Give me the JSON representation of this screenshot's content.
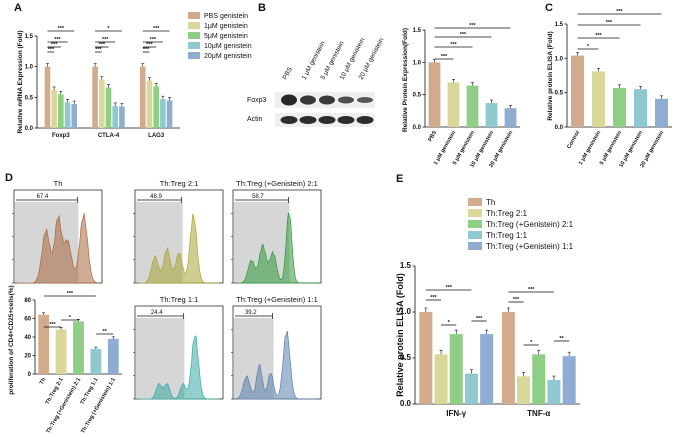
{
  "panel_letters": {
    "a": "A",
    "b": "B",
    "c": "C",
    "d": "D",
    "e": "E"
  },
  "colors": {
    "pbs": "#d2aa8c",
    "g1": "#d9d79a",
    "g5": "#8fcf85",
    "g10": "#8fc8cf",
    "g20": "#8facd3",
    "th": "#d2aa8c",
    "treg21": "#d9d79a",
    "gen21": "#8fcf85",
    "treg11": "#8fc8cf",
    "gen11": "#8facd3",
    "hist_brown": "#a9683f",
    "hist_olive": "#a7a637",
    "hist_green": "#2f9a3c",
    "hist_teal": "#3aa9a4",
    "hist_blue": "#5a80ad",
    "gate": "#d6d6d6"
  },
  "blot": {
    "labels": [
      "Foxp3",
      "Actin"
    ],
    "lanes": [
      "PBS",
      "1 μM genistein",
      "5 μM genistein",
      "10 μM genistein",
      "20 μM genistein"
    ]
  },
  "histograms": {
    "th": {
      "title": "Th",
      "gate": "67.4"
    },
    "treg21": {
      "title": "Th:Treg  2:1",
      "gate": "48.9"
    },
    "gen21": {
      "title": "Th:Treg (+Genistein)  2:1",
      "gate": "58.7"
    },
    "treg11": {
      "title": "Th:Treg  1:1",
      "gate": "24.4"
    },
    "gen11": {
      "title": "Th:Treg (+Genistein) 1:1",
      "gate": "39.2"
    }
  },
  "chart_data": [
    {
      "id": "A",
      "type": "bar",
      "ylabel": "Relative mRNA Expression (Fold)",
      "ylim": [
        0,
        1.5
      ],
      "yticks": [
        0.0,
        0.5,
        1.0,
        1.5
      ],
      "categories": [
        "Foxp3",
        "CTLA-4",
        "LAG3"
      ],
      "series": [
        {
          "name": "PBS genistein",
          "values": [
            1.0,
            1.0,
            1.0
          ]
        },
        {
          "name": "1μM genistein",
          "values": [
            0.62,
            0.79,
            0.77
          ]
        },
        {
          "name": "5μM genistein",
          "values": [
            0.55,
            0.66,
            0.68
          ]
        },
        {
          "name": "10μM genistein",
          "values": [
            0.42,
            0.36,
            0.47
          ]
        },
        {
          "name": "20μM  genistein",
          "values": [
            0.39,
            0.35,
            0.45
          ]
        }
      ],
      "significance": [
        "***",
        "***",
        "***",
        "***",
        "***",
        "***",
        "***",
        "***",
        "***",
        "*",
        "***",
        "***",
        "***",
        "***",
        "***"
      ],
      "legend": "right"
    },
    {
      "id": "B",
      "type": "bar",
      "ylabel": "Relative Protein Expression(Fold)",
      "ylim": [
        0,
        1.5
      ],
      "yticks": [
        0.0,
        0.5,
        1.0,
        1.5
      ],
      "categories": [
        "PBS",
        "1 μM genistein",
        "5 μM genistein",
        "10 μM genistein",
        "20 μM genistein"
      ],
      "values": [
        1.0,
        0.69,
        0.64,
        0.37,
        0.29
      ],
      "significance": [
        "***",
        "***",
        "***",
        "***"
      ]
    },
    {
      "id": "C",
      "type": "bar",
      "ylabel": "Relative protein ELISA (Fold)",
      "ylim": [
        0,
        1.5
      ],
      "yticks": [
        0.0,
        0.5,
        1.0,
        1.5
      ],
      "categories": [
        "Control",
        "1 μM genistein",
        "5 μM genistein",
        "10 μM genistein",
        "20 μM genistein"
      ],
      "values": [
        1.04,
        0.81,
        0.57,
        0.55,
        0.41
      ],
      "significance": [
        "*",
        "***",
        "***",
        "***"
      ]
    },
    {
      "id": "D",
      "type": "bar",
      "ylabel": "proliferation of CD4+CD25+cells(%)",
      "ylim": [
        0,
        80
      ],
      "yticks": [
        0,
        20,
        40,
        60,
        80
      ],
      "categories": [
        "Th",
        "Th:Treg 2:1",
        "Th:Treg (+Genistein) 2:1",
        "Th:Treg 1:1",
        "Th:Treg (+Genistein) 1:1"
      ],
      "values": [
        64,
        48,
        57,
        27,
        38
      ],
      "significance": [
        "***",
        "***",
        "*",
        "**"
      ]
    },
    {
      "id": "E",
      "type": "bar",
      "ylabel": "Relative protein ELISA (Fold)",
      "ylim": [
        0,
        1.5
      ],
      "yticks": [
        0.0,
        0.5,
        1.0,
        1.5
      ],
      "categories": [
        "IFN-γ",
        "TNF-α"
      ],
      "series": [
        {
          "name": "Th",
          "values": [
            1.0,
            1.0
          ]
        },
        {
          "name": "Th:Treg  2:1",
          "values": [
            0.54,
            0.3
          ]
        },
        {
          "name": "Th:Treg (+Genistein) 2:1",
          "values": [
            0.76,
            0.54
          ]
        },
        {
          "name": "Th:Treg  1:1",
          "values": [
            0.33,
            0.26
          ]
        },
        {
          "name": "Th:Treg (+Genistein) 1:1",
          "values": [
            0.76,
            0.52
          ]
        }
      ],
      "significance": [
        "***",
        "***",
        "*",
        "***",
        "***",
        "***",
        "*",
        "**"
      ],
      "legend": "top-right"
    }
  ]
}
